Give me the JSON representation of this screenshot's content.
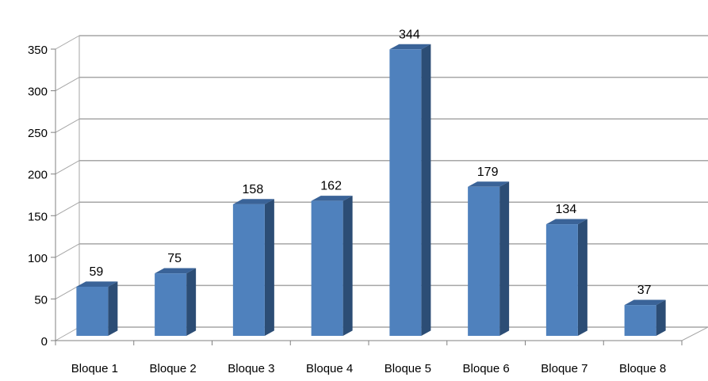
{
  "chart_data": {
    "type": "bar",
    "style": "3d-column",
    "categories": [
      "Bloque 1",
      "Bloque 2",
      "Bloque 3",
      "Bloque 4",
      "Bloque 5",
      "Bloque 6",
      "Bloque 7",
      "Bloque 8"
    ],
    "values": [
      59,
      75,
      158,
      162,
      344,
      179,
      134,
      37
    ],
    "data_labels": [
      "59",
      "75",
      "158",
      "162",
      "344",
      "179",
      "134",
      "37"
    ],
    "y_ticks": [
      "0",
      "50",
      "100",
      "150",
      "200",
      "250",
      "300",
      "350"
    ],
    "ylim": [
      0,
      350
    ],
    "grid": true,
    "legend": "none",
    "colors": {
      "bar_front": "#4F81BD",
      "bar_side": "#2C4D75",
      "bar_top": "#3A6398",
      "gridline": "#A6A6A6",
      "text": "#000000"
    }
  }
}
